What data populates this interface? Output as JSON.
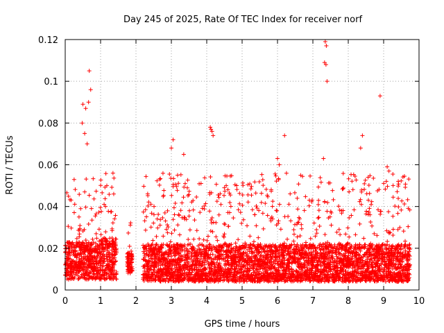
{
  "chart_data": {
    "type": "scatter",
    "title": "Day 245 of 2025, Rate Of TEC Index for receiver norf",
    "xlabel": "GPS time / hours",
    "ylabel": "ROTI / TECUs",
    "xlim": [
      0,
      10
    ],
    "ylim": [
      0,
      0.12
    ],
    "xticks": [
      0,
      1,
      2,
      3,
      4,
      5,
      6,
      7,
      8,
      9,
      10
    ],
    "xtick_labels": [
      "0",
      "1",
      "2",
      "3",
      "4",
      "5",
      "6",
      "7",
      "8",
      "9",
      "10"
    ],
    "yticks": [
      0,
      0.02,
      0.04,
      0.06,
      0.08,
      0.1,
      0.12
    ],
    "ytick_labels": [
      "0",
      "0.02",
      "0.04",
      "0.06",
      "0.08",
      "0.1",
      "0.12"
    ],
    "grid": true,
    "marker": "+",
    "color": "#ff0000",
    "series": [
      {
        "name": "ROTI",
        "segments": [
          {
            "x_start": 0.0,
            "x_end": 0.95,
            "median": 0.014,
            "spread": 0.018
          },
          {
            "x_start": 0.95,
            "x_end": 1.45,
            "median": 0.015,
            "spread": 0.02
          },
          {
            "x_start": 1.75,
            "x_end": 1.9,
            "median": 0.013,
            "spread": 0.01
          },
          {
            "x_start": 2.2,
            "x_end": 9.75,
            "median": 0.012,
            "spread": 0.02
          }
        ],
        "notable_points": [
          {
            "x": 0.68,
            "y": 0.105
          },
          {
            "x": 0.72,
            "y": 0.096
          },
          {
            "x": 0.5,
            "y": 0.089
          },
          {
            "x": 0.58,
            "y": 0.087
          },
          {
            "x": 0.66,
            "y": 0.09
          },
          {
            "x": 0.48,
            "y": 0.08
          },
          {
            "x": 0.55,
            "y": 0.075
          },
          {
            "x": 0.62,
            "y": 0.07
          },
          {
            "x": 1.35,
            "y": 0.056
          },
          {
            "x": 1.1,
            "y": 0.041
          },
          {
            "x": 3.05,
            "y": 0.072
          },
          {
            "x": 3.0,
            "y": 0.068
          },
          {
            "x": 3.35,
            "y": 0.065
          },
          {
            "x": 4.1,
            "y": 0.078
          },
          {
            "x": 4.12,
            "y": 0.077
          },
          {
            "x": 4.15,
            "y": 0.076
          },
          {
            "x": 4.18,
            "y": 0.074
          },
          {
            "x": 4.55,
            "y": 0.05
          },
          {
            "x": 6.0,
            "y": 0.063
          },
          {
            "x": 6.05,
            "y": 0.06
          },
          {
            "x": 6.2,
            "y": 0.074
          },
          {
            "x": 7.35,
            "y": 0.119
          },
          {
            "x": 7.38,
            "y": 0.117
          },
          {
            "x": 7.33,
            "y": 0.109
          },
          {
            "x": 7.37,
            "y": 0.108
          },
          {
            "x": 7.4,
            "y": 0.1
          },
          {
            "x": 7.3,
            "y": 0.063
          },
          {
            "x": 8.4,
            "y": 0.074
          },
          {
            "x": 8.35,
            "y": 0.068
          },
          {
            "x": 8.9,
            "y": 0.093
          },
          {
            "x": 9.1,
            "y": 0.059
          },
          {
            "x": 9.15,
            "y": 0.057
          }
        ]
      }
    ]
  }
}
